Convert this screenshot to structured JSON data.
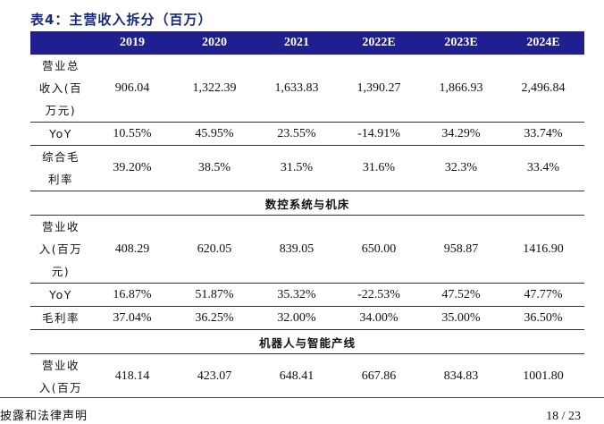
{
  "title": "表4：主营收入拆分（百万）",
  "table": {
    "columns": [
      "",
      "2019",
      "2020",
      "2021",
      "2022E",
      "2023E",
      "2024E"
    ],
    "rows": [
      {
        "type": "data",
        "label": [
          "营业总",
          "收入(百",
          "万元)"
        ],
        "values": [
          "906.04",
          "1,322.39",
          "1,633.83",
          "1,390.27",
          "1,866.93",
          "2,496.84"
        ],
        "bottom_border": true
      },
      {
        "type": "data",
        "label": [
          "YoY"
        ],
        "values": [
          "10.55%",
          "45.95%",
          "23.55%",
          "-14.91%",
          "34.29%",
          "33.74%"
        ],
        "bottom_border": true
      },
      {
        "type": "data",
        "label": [
          "综合毛",
          "利率"
        ],
        "values": [
          "39.20%",
          "38.5%",
          "31.5%",
          "31.6%",
          "32.3%",
          "33.4%"
        ],
        "bottom_border": true
      },
      {
        "type": "section",
        "label": "数控系统与机床"
      },
      {
        "type": "data",
        "label": [
          "营业收",
          "入(百万",
          "元)"
        ],
        "values": [
          "408.29",
          "620.05",
          "839.05",
          "650.00",
          "958.87",
          "1416.90"
        ],
        "bottom_border": true
      },
      {
        "type": "data",
        "label": [
          "YoY"
        ],
        "values": [
          "16.87%",
          "51.87%",
          "35.32%",
          "-22.53%",
          "47.52%",
          "47.77%"
        ],
        "bottom_border": true
      },
      {
        "type": "data",
        "label": [
          "毛利率"
        ],
        "values": [
          "37.04%",
          "36.25%",
          "32.00%",
          "34.00%",
          "35.00%",
          "36.50%"
        ],
        "bottom_border": true
      },
      {
        "type": "section",
        "label": "机器人与智能产线"
      },
      {
        "type": "data",
        "label": [
          "营业收",
          "入(百万"
        ],
        "values": [
          "418.14",
          "423.07",
          "648.41",
          "667.86",
          "834.83",
          "1001.80"
        ],
        "bottom_border": false
      }
    ]
  },
  "footer": {
    "left": "披露和法律声明",
    "right": "18 / 23"
  }
}
